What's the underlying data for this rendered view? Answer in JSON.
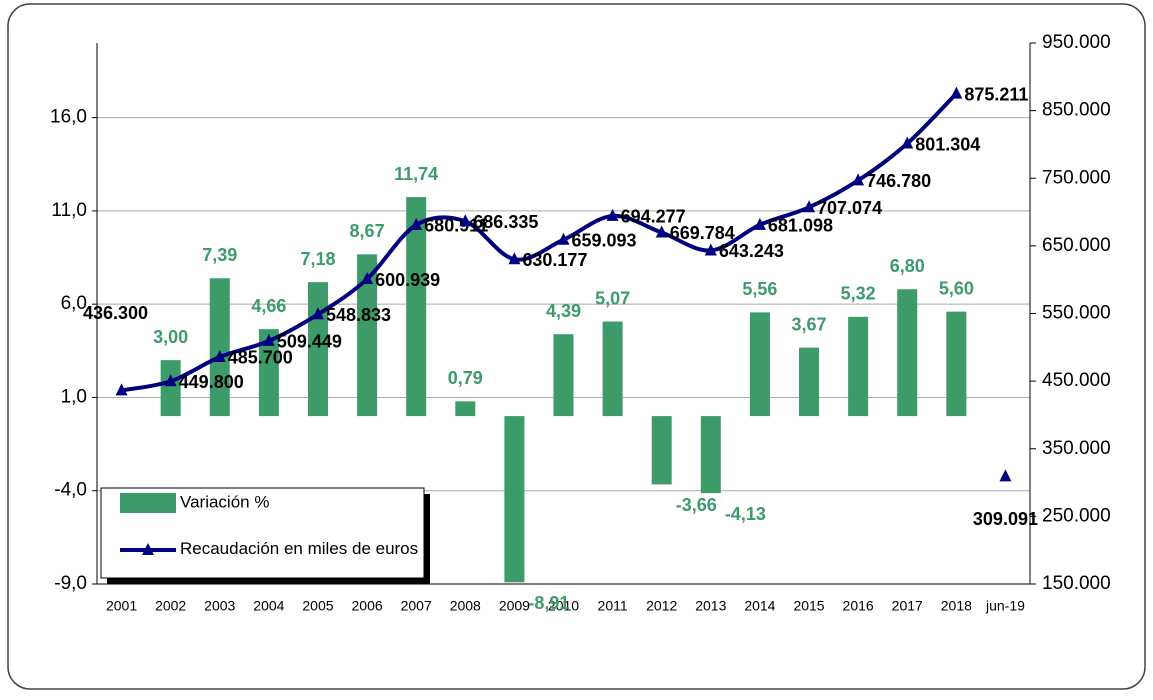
{
  "chart_data": {
    "type": "bar-line",
    "categories": [
      "2001",
      "2002",
      "2003",
      "2004",
      "2005",
      "2006",
      "2007",
      "2008",
      "2009",
      "2010",
      "2011",
      "2012",
      "2013",
      "2014",
      "2015",
      "2016",
      "2017",
      "2018",
      "jun-19"
    ],
    "series": [
      {
        "name": "Variación %",
        "type": "bar",
        "color": "#3c9b68",
        "label_color": "#3c9b68",
        "values": [
          null,
          3.0,
          7.39,
          4.66,
          7.18,
          8.67,
          11.74,
          0.79,
          -8.91,
          4.39,
          5.07,
          -3.66,
          -4.13,
          5.56,
          3.67,
          5.32,
          6.8,
          5.6,
          null
        ],
        "value_labels": [
          null,
          "3,00",
          "7,39",
          "4,66",
          "7,18",
          "8,67",
          "11,74",
          "0,79",
          "-8,91",
          "4,39",
          "5,07",
          "-3,66",
          "-4,13",
          "5,56",
          "3,67",
          "5,32",
          "6,80",
          "5,60",
          null
        ]
      },
      {
        "name": "Recaudación en miles de euros",
        "type": "line",
        "axis": "y2",
        "color": "#000080",
        "label_color": "#000000",
        "values": [
          436300,
          449800,
          485700,
          509449,
          548833,
          600939,
          680911,
          686335,
          630177,
          659093,
          694277,
          669784,
          643243,
          681098,
          707074,
          746780,
          801304,
          875211,
          309091
        ],
        "value_labels": [
          "436.300",
          "449.800",
          "485.700",
          "509.449",
          "548.833",
          "600.939",
          "680.911",
          "686.335",
          "630.177",
          "659.093",
          "694.277",
          "669.784",
          "643.243",
          "681.098",
          "707.074",
          "746.780",
          "801.304",
          "875.211",
          "309.091"
        ]
      }
    ],
    "ylim": [
      -9,
      20
    ],
    "yticks": [
      {
        "value": -9,
        "label": "-9,0"
      },
      {
        "value": -4,
        "label": "-4,0"
      },
      {
        "value": 1,
        "label": "1,0"
      },
      {
        "value": 6,
        "label": "6,0"
      },
      {
        "value": 11,
        "label": "11,0"
      },
      {
        "value": 16,
        "label": "16,0"
      }
    ],
    "y2lim": [
      150000,
      950000
    ],
    "y2ticks": [
      {
        "value": 150000,
        "label": "150.000"
      },
      {
        "value": 250000,
        "label": "250.000"
      },
      {
        "value": 350000,
        "label": "350.000"
      },
      {
        "value": 450000,
        "label": "450.000"
      },
      {
        "value": 550000,
        "label": "550.000"
      },
      {
        "value": 650000,
        "label": "650.000"
      },
      {
        "value": 750000,
        "label": "750.000"
      },
      {
        "value": 850000,
        "label": "850.000"
      },
      {
        "value": 950000,
        "label": "950.000"
      }
    ],
    "grid": true
  }
}
